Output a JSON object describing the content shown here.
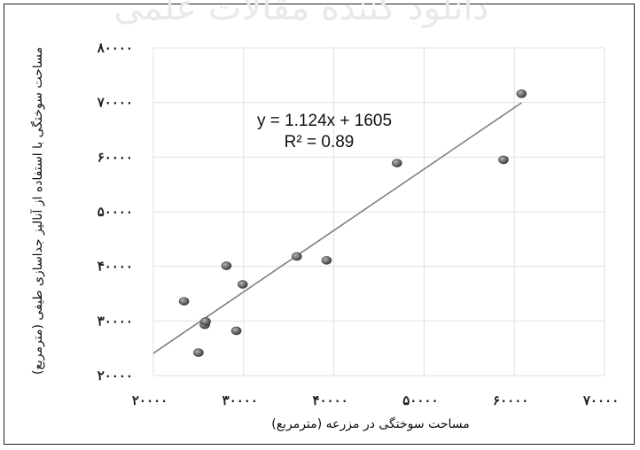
{
  "watermark": "دانلود کننده مقالات علمی",
  "chart_data": {
    "type": "scatter",
    "title": "",
    "xlabel": "مساحت سوختگی در مزرعه (مترمربع)",
    "ylabel": "مساحت سوختگی با استفاده از آنالیز جداسازی طیفی (مترمربع)",
    "xlim": [
      20000,
      70000
    ],
    "ylim": [
      20000,
      80000
    ],
    "x_ticks": [
      20000,
      30000,
      40000,
      50000,
      60000,
      70000
    ],
    "y_ticks": [
      20000,
      30000,
      40000,
      50000,
      60000,
      70000,
      80000
    ],
    "x_tick_labels": [
      "۲۰۰۰۰",
      "۳۰۰۰۰",
      "۴۰۰۰۰",
      "۵۰۰۰۰",
      "۶۰۰۰۰",
      "۷۰۰۰۰"
    ],
    "y_tick_labels": [
      "۲۰۰۰۰",
      "۳۰۰۰۰",
      "۴۰۰۰۰",
      "۵۰۰۰۰",
      "۶۰۰۰۰",
      "۷۰۰۰۰",
      "۸۰۰۰۰"
    ],
    "grid": true,
    "points": [
      {
        "x": 23400,
        "y": 33600
      },
      {
        "x": 25000,
        "y": 24200
      },
      {
        "x": 25700,
        "y": 29300
      },
      {
        "x": 25800,
        "y": 29900
      },
      {
        "x": 28100,
        "y": 40100
      },
      {
        "x": 29200,
        "y": 28200
      },
      {
        "x": 29900,
        "y": 36700
      },
      {
        "x": 35900,
        "y": 41800
      },
      {
        "x": 39200,
        "y": 41100
      },
      {
        "x": 47000,
        "y": 58900
      },
      {
        "x": 58800,
        "y": 59500
      },
      {
        "x": 60800,
        "y": 71600
      }
    ],
    "trendline": {
      "slope": 1.124,
      "intercept": 1605,
      "x_range": [
        20000,
        60800
      ],
      "equation": "y = 1.124x + 1605",
      "r_squared": "R² = 0.89"
    },
    "colors": {
      "point": "#6f6f6f",
      "point_edge": "#3f3f3f",
      "trendline": "#7f7f7f",
      "grid": "#e0e0e0"
    }
  }
}
